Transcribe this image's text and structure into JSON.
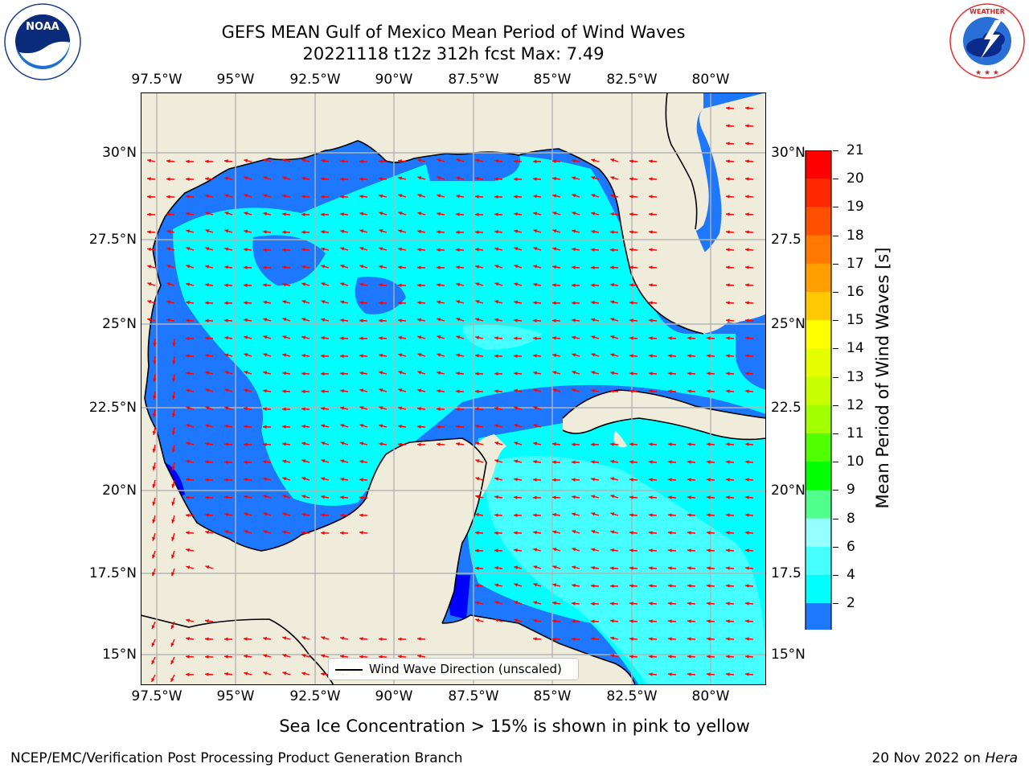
{
  "title": {
    "line1": "GEFS MEAN Gulf of Mexico Mean Period of Wind Waves",
    "line2": "20221118 t12z 312h fcst   Max: 7.49"
  },
  "logos": {
    "noaa_text": "NOAA",
    "noaa_ring_text": "NATIONAL OCEANIC AND ATMOSPHERIC ADMINISTRATION · U.S. DEPARTMENT OF COMMERCE",
    "nws_ring_text": "NATIONAL WEATHER SERVICE"
  },
  "map": {
    "lon_labels": [
      "97.5°W",
      "95°W",
      "92.5°W",
      "90°W",
      "87.5°W",
      "85°W",
      "82.5°W",
      "80°W"
    ],
    "lat_labels_left": [
      "30°N",
      "27.5°N",
      "25°N",
      "22.5°N",
      "20°N",
      "17.5°N",
      "15°N"
    ],
    "lat_labels_right": [
      "30°N",
      "27.5",
      "25°N",
      "22.5",
      "20°N",
      "17.5",
      "15°N"
    ],
    "legend_label": "Wind Wave Direction (unscaled)",
    "colors": {
      "land": "#efecdc",
      "ocean_dark": "#0000ff",
      "ocean_2_4": "#1e78ff",
      "ocean_4_6": "#00ffff",
      "ocean_6_8": "#46ffff",
      "arrows": "#ff0000",
      "grid": "#b4b4b4"
    }
  },
  "colorbar": {
    "label": "Mean Period of Wind Waves [s]",
    "tick_labels": [
      "21",
      "20",
      "19",
      "18",
      "17",
      "16",
      "15",
      "14",
      "13",
      "12",
      "11",
      "10",
      "9",
      "8",
      "6",
      "4",
      "2"
    ],
    "colors": [
      "#ff0000",
      "#ff2800",
      "#ff5000",
      "#ff7800",
      "#ffa000",
      "#ffc800",
      "#ffff00",
      "#e6ff00",
      "#c8ff00",
      "#a0ff00",
      "#50ff00",
      "#00ff00",
      "#50ff8c",
      "#96ffff",
      "#46ffff",
      "#00ffff",
      "#1e78ff",
      "#0000ff"
    ]
  },
  "note": "Sea Ice Concentration > 15% is shown in pink to yellow",
  "footer": {
    "left": "NCEP/EMC/Verification Post Processing Product Generation Branch",
    "right_date": "20 Nov 2022 on ",
    "right_machine": "Hera"
  }
}
